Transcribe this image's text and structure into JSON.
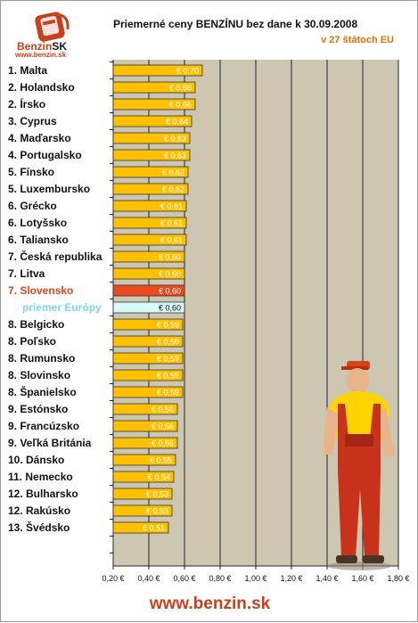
{
  "logo": {
    "brand": "Benzin",
    "brand_suffix": "SK",
    "url": "www.benzin.sk"
  },
  "chart_data": {
    "type": "bar",
    "orientation": "horizontal",
    "title": "Priemerné ceny BENZÍNU bez dane k 30.09.2008",
    "subtitle": "v 27 štátoch EU",
    "categories": [
      "1. Malta",
      "2. Holandsko",
      "2. Írsko",
      "3. Cyprus",
      "4. Maďarsko",
      "4. Portugalsko",
      "5. Fínsko",
      "5. Luxembursko",
      "6. Grécko",
      "6. Lotyšsko",
      "6. Taliansko",
      "7. Česká republika",
      "7. Litva",
      "7. Slovensko",
      "priemer Európy",
      "8. Belgicko",
      "8. Poľsko",
      "8. Rumunsko",
      "8. Slovinsko",
      "8. Španielsko",
      "9. Estónsko",
      "9. Francúzsko",
      "9. Veľká Británia",
      "10. Dánsko",
      "11. Nemecko",
      "12. Bulharsko",
      "12. Rakúsko",
      "13. Švédsko"
    ],
    "values": [
      0.7,
      0.66,
      0.66,
      0.64,
      0.63,
      0.63,
      0.62,
      0.62,
      0.61,
      0.61,
      0.61,
      0.6,
      0.6,
      0.6,
      0.6,
      0.59,
      0.59,
      0.59,
      0.59,
      0.59,
      0.56,
      0.56,
      0.56,
      0.55,
      0.54,
      0.53,
      0.53,
      0.51
    ],
    "value_labels": [
      "€ 0,70",
      "€ 0,66",
      "€ 0,66",
      "€ 0,64",
      "€ 0,63",
      "€ 0,63",
      "€ 0,62",
      "€ 0,62",
      "€ 0,61",
      "€ 0,61",
      "€ 0,61",
      "€ 0,60",
      "€ 0,60",
      "€ 0,60",
      "€ 0,60",
      "€ 0,59",
      "€ 0,59",
      "€ 0,59",
      "€ 0,59",
      "€ 0,59",
      "€ 0,56",
      "€ 0,56",
      "€ 0,56",
      "€ 0,55",
      "€ 0,54",
      "€ 0,53",
      "€ 0,53",
      "€ 0,51"
    ],
    "highlight": {
      "index": 13,
      "color": "#ea4a1c",
      "label_color": "#e0441c"
    },
    "average": {
      "index": 14,
      "color": "#d7fafa",
      "label_color": "#7fd3ee"
    },
    "bar_color": "#ffc000",
    "plot_background": "#cdc7b2",
    "xlim": [
      0.2,
      1.8
    ],
    "ticks": [
      0.2,
      0.4,
      0.6,
      0.8,
      1.0,
      1.2,
      1.4,
      1.6,
      1.8
    ],
    "tick_labels": [
      "0,20 €",
      "0,40 €",
      "0,60 €",
      "0,80 €",
      "1,00 €",
      "1,20 €",
      "1,40 €",
      "1,60 €",
      "1,80 €"
    ],
    "grid": true
  },
  "footer": {
    "url": "www.benzin.sk"
  }
}
